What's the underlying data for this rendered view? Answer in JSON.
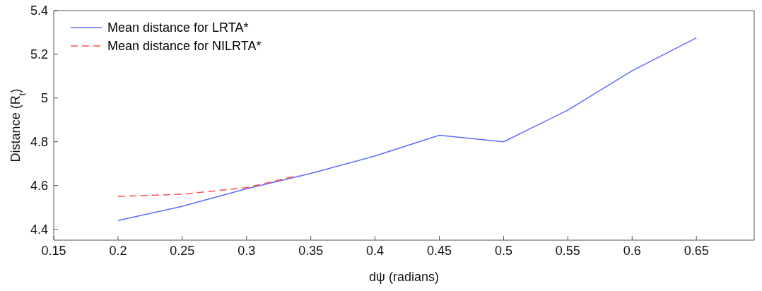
{
  "chart_data": {
    "type": "line",
    "xlabel": "dψ (radians)",
    "ylabel": "Distance (R$_{t}$)",
    "xlim": [
      0.15,
      0.695
    ],
    "xticks": [
      0.15,
      0.2,
      0.25,
      0.3,
      0.35,
      0.4,
      0.45,
      0.5,
      0.55,
      0.6,
      0.65
    ],
    "ylim": [
      4.35,
      5.4
    ],
    "yticks": [
      4.4,
      4.6,
      4.8,
      5,
      5.2,
      5.4
    ],
    "legend": "top left",
    "marker": "none",
    "series": [
      {
        "name": "Mean distance for LRTA*",
        "color": "#5a6cff",
        "line_style": "solid",
        "x": [
          0.2,
          0.25,
          0.3,
          0.35,
          0.4,
          0.45,
          0.5,
          0.55,
          0.6,
          0.65
        ],
        "values": [
          4.44,
          4.505,
          4.585,
          4.655,
          4.735,
          4.83,
          4.8,
          4.945,
          5.125,
          5.275
        ]
      },
      {
        "name": "Mean distance for NILRTA*",
        "color": "#ff4d4d",
        "line_style": "dashed",
        "x": [
          0.2,
          0.25,
          0.3,
          0.34
        ],
        "values": [
          4.55,
          4.56,
          4.59,
          4.645
        ]
      }
    ]
  }
}
